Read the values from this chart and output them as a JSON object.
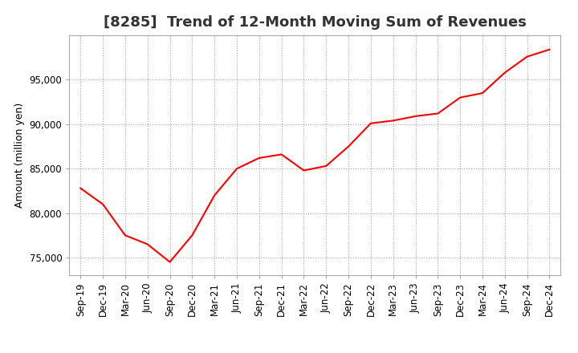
{
  "title": "[8285]  Trend of 12-Month Moving Sum of Revenues",
  "ylabel": "Amount (million yen)",
  "line_color": "#FF0000",
  "background_color": "#FFFFFF",
  "plot_bg_color": "#FFFFFF",
  "grid_color": "#999999",
  "title_color": "#333333",
  "x_labels": [
    "Sep-19",
    "Dec-19",
    "Mar-20",
    "Jun-20",
    "Sep-20",
    "Dec-20",
    "Mar-21",
    "Jun-21",
    "Sep-21",
    "Dec-21",
    "Mar-22",
    "Jun-22",
    "Sep-22",
    "Dec-22",
    "Mar-23",
    "Jun-23",
    "Sep-23",
    "Dec-23",
    "Mar-24",
    "Jun-24",
    "Sep-24",
    "Dec-24"
  ],
  "values": [
    82800,
    81000,
    77500,
    76500,
    74500,
    77500,
    82000,
    85000,
    86200,
    86600,
    84800,
    85300,
    87500,
    90100,
    90400,
    90900,
    91200,
    93000,
    93500,
    95800,
    97600,
    98400
  ],
  "ylim": [
    73000,
    100000
  ],
  "yticks": [
    75000,
    80000,
    85000,
    90000,
    95000
  ],
  "title_fontsize": 13,
  "label_fontsize": 9,
  "tick_fontsize": 8.5
}
